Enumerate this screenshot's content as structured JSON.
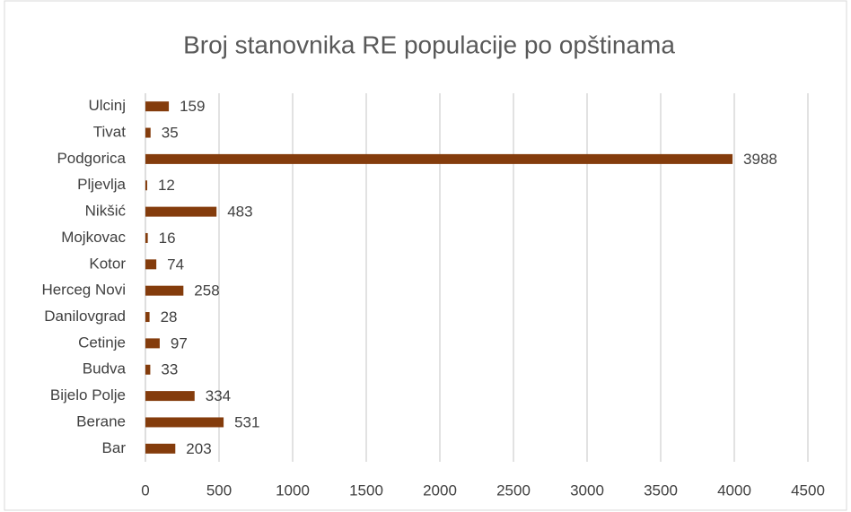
{
  "chart_data": {
    "type": "bar",
    "orientation": "horizontal",
    "title": "Broj stanovnika RE populacije po opštinama",
    "categories": [
      "Bar",
      "Berane",
      "Bijelo Polje",
      "Budva",
      "Cetinje",
      "Danilovgrad",
      "Herceg Novi",
      "Kotor",
      "Mojkovac",
      "Nikšić",
      "Pljevlja",
      "Podgorica",
      "Tivat",
      "Ulcinj"
    ],
    "values": [
      203,
      531,
      334,
      33,
      97,
      28,
      258,
      74,
      16,
      483,
      12,
      3988,
      35,
      159
    ],
    "color": "#843c0c",
    "xlim": [
      0,
      4500
    ],
    "xticks": [
      0,
      500,
      1000,
      1500,
      2000,
      2500,
      3000,
      3500,
      4000,
      4500
    ],
    "grid": true
  }
}
